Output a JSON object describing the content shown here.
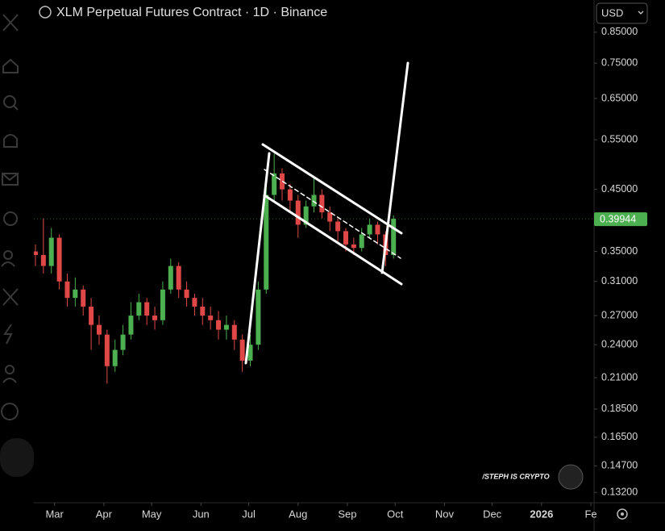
{
  "header": {
    "title": "XLM Perpetual Futures Contract · 1D · Binance",
    "currency": "USD"
  },
  "chart_data": {
    "type": "candlestick",
    "x": [
      -12,
      -7,
      -2,
      3,
      8,
      13,
      18,
      23,
      28,
      33,
      38,
      43,
      48,
      53,
      58,
      63,
      68,
      73,
      78,
      83,
      88,
      93,
      98,
      103,
      108,
      113,
      118,
      123,
      128,
      133,
      138,
      143,
      148,
      153,
      158,
      163,
      168,
      173,
      178,
      183,
      188,
      193,
      198,
      203,
      208,
      213
    ],
    "open": [
      0.35,
      0.345,
      0.33,
      0.37,
      0.31,
      0.29,
      0.3,
      0.28,
      0.26,
      0.25,
      0.22,
      0.235,
      0.25,
      0.27,
      0.285,
      0.27,
      0.265,
      0.3,
      0.33,
      0.3,
      0.29,
      0.28,
      0.27,
      0.265,
      0.255,
      0.26,
      0.245,
      0.225,
      0.24,
      0.3,
      0.44,
      0.48,
      0.45,
      0.43,
      0.39,
      0.42,
      0.44,
      0.41,
      0.395,
      0.38,
      0.36,
      0.355,
      0.375,
      0.39,
      0.375,
      0.345
    ],
    "high": [
      0.36,
      0.4,
      0.385,
      0.375,
      0.32,
      0.315,
      0.305,
      0.29,
      0.27,
      0.255,
      0.245,
      0.26,
      0.285,
      0.295,
      0.29,
      0.28,
      0.31,
      0.34,
      0.335,
      0.31,
      0.295,
      0.29,
      0.28,
      0.275,
      0.27,
      0.265,
      0.25,
      0.25,
      0.31,
      0.46,
      0.52,
      0.49,
      0.46,
      0.44,
      0.43,
      0.47,
      0.45,
      0.42,
      0.4,
      0.385,
      0.37,
      0.385,
      0.4,
      0.395,
      0.38,
      0.405
    ],
    "low": [
      0.33,
      0.32,
      0.32,
      0.3,
      0.28,
      0.28,
      0.27,
      0.235,
      0.24,
      0.205,
      0.215,
      0.23,
      0.245,
      0.265,
      0.26,
      0.255,
      0.26,
      0.295,
      0.29,
      0.28,
      0.27,
      0.26,
      0.255,
      0.245,
      0.245,
      0.235,
      0.215,
      0.22,
      0.235,
      0.295,
      0.43,
      0.43,
      0.41,
      0.37,
      0.385,
      0.41,
      0.4,
      0.38,
      0.365,
      0.35,
      0.345,
      0.35,
      0.37,
      0.36,
      0.33,
      0.34
    ],
    "close": [
      0.345,
      0.33,
      0.37,
      0.31,
      0.29,
      0.3,
      0.28,
      0.26,
      0.25,
      0.22,
      0.235,
      0.25,
      0.27,
      0.285,
      0.27,
      0.265,
      0.3,
      0.33,
      0.3,
      0.29,
      0.28,
      0.27,
      0.265,
      0.255,
      0.26,
      0.245,
      0.225,
      0.24,
      0.3,
      0.44,
      0.48,
      0.45,
      0.43,
      0.39,
      0.42,
      0.44,
      0.41,
      0.395,
      0.38,
      0.36,
      0.355,
      0.375,
      0.39,
      0.375,
      0.345,
      0.39944
    ],
    "up_color": "#4caf50",
    "down_color": "#e04848",
    "log_scale": true,
    "xlim": [
      -13,
      339
    ],
    "ylim": [
      0.127,
      0.962
    ],
    "xticks": [
      {
        "value": 0,
        "label": "Mar"
      },
      {
        "value": 31,
        "label": "Apr"
      },
      {
        "value": 61,
        "label": "May"
      },
      {
        "value": 92,
        "label": "Jun"
      },
      {
        "value": 122,
        "label": "Jul"
      },
      {
        "value": 153,
        "label": "Aug"
      },
      {
        "value": 184,
        "label": "Sep"
      },
      {
        "value": 214,
        "label": "Oct"
      },
      {
        "value": 245,
        "label": "Nov"
      },
      {
        "value": 275,
        "label": "Dec"
      },
      {
        "value": 306,
        "label": "2026"
      },
      {
        "value": 337,
        "label": "Fe"
      }
    ],
    "yticks": [
      {
        "value": 0.85,
        "label": "0.85000"
      },
      {
        "value": 0.75,
        "label": "0.75000"
      },
      {
        "value": 0.65,
        "label": "0.65000"
      },
      {
        "value": 0.55,
        "label": "0.55000"
      },
      {
        "value": 0.45,
        "label": "0.45000"
      },
      {
        "value": 0.35,
        "label": "0.35000"
      },
      {
        "value": 0.31,
        "label": "0.31000"
      },
      {
        "value": 0.27,
        "label": "0.27000"
      },
      {
        "value": 0.24,
        "label": "0.24000"
      },
      {
        "value": 0.21,
        "label": "0.21000"
      },
      {
        "value": 0.185,
        "label": "0.18500"
      },
      {
        "value": 0.165,
        "label": "0.16500"
      },
      {
        "value": 0.147,
        "label": "0.14700"
      },
      {
        "value": 0.132,
        "label": "0.13200"
      }
    ],
    "last_price": 0.39944,
    "last_price_color": "#4caf50",
    "watermark": "/STEPH IS CRYPTO"
  }
}
